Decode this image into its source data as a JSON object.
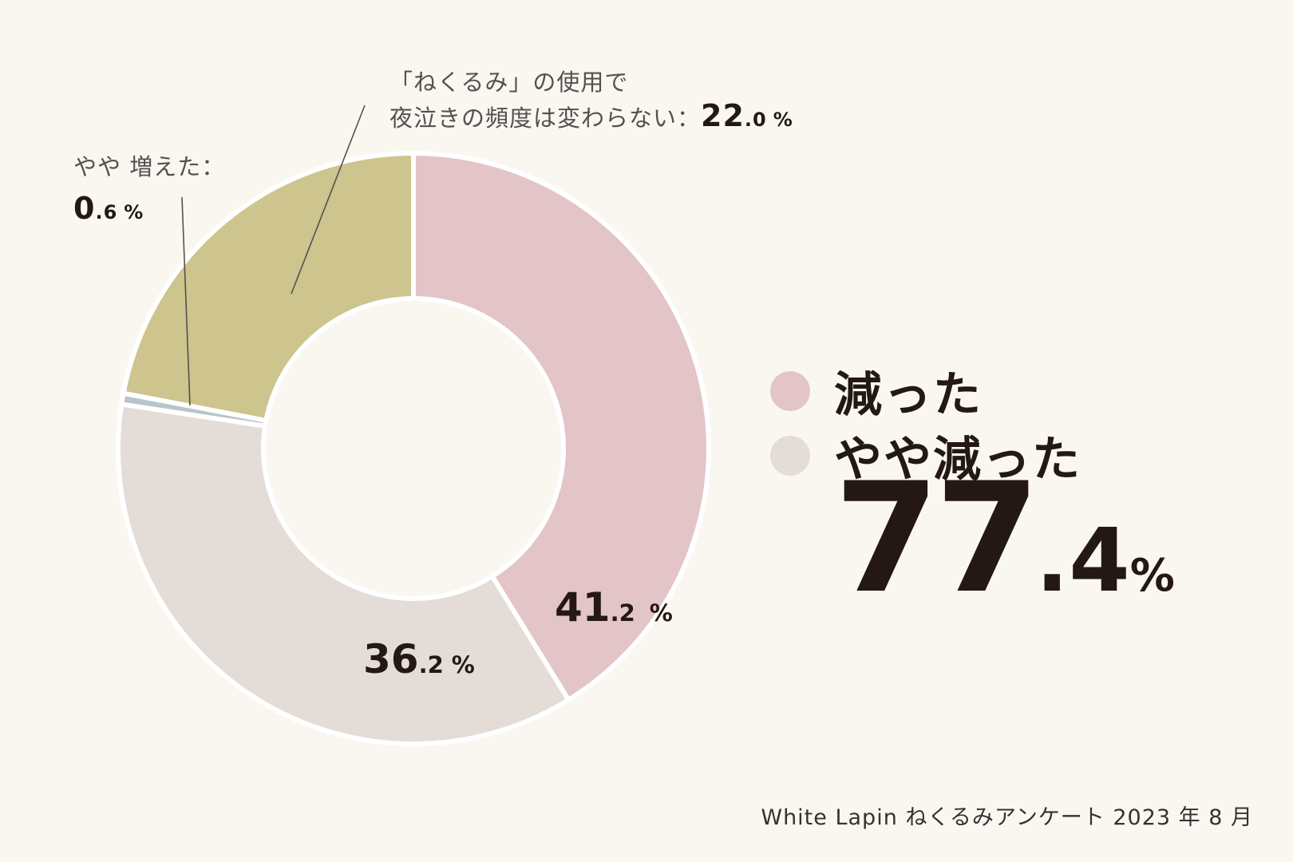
{
  "chart_data": {
    "type": "pie",
    "donut": true,
    "segments": [
      {
        "label": "減った",
        "value": 41.2,
        "display_int": "41",
        "display_dec": ".2",
        "color": "#e3c5c7"
      },
      {
        "label": "やや減った",
        "value": 36.2,
        "display_int": "36",
        "display_dec": ".2",
        "color": "#e4dcd6"
      },
      {
        "label": "やや 増えた",
        "value": 0.6,
        "display_int": "0",
        "display_dec": ".6",
        "color": "#b6c5cc"
      },
      {
        "label": "「ねくるみ」の使用で夜泣きの頻度は変わらない",
        "value": 22.0,
        "display_int": "22",
        "display_dec": ".0",
        "color": "#cdc48e"
      }
    ],
    "unit": "%"
  },
  "callouts": {
    "unchanged_line1": "「ねくるみ」の使用で",
    "unchanged_line2": "夜泣きの頻度は変わらない：",
    "unchanged_int": "22",
    "unchanged_dec": ".0",
    "slight_increase_label": "やや 増えた：",
    "slight_increase_int": "0",
    "slight_increase_dec": ".6",
    "unit": "%"
  },
  "legend": {
    "items": [
      {
        "label": "減った",
        "color": "#e3c5c7"
      },
      {
        "label": "やや減った",
        "color": "#e4dcd6"
      }
    ]
  },
  "total": {
    "int": "77",
    "dec": ".4",
    "unit": "%"
  },
  "source": "White Lapin ねくるみアンケート 2023 年 8 月"
}
